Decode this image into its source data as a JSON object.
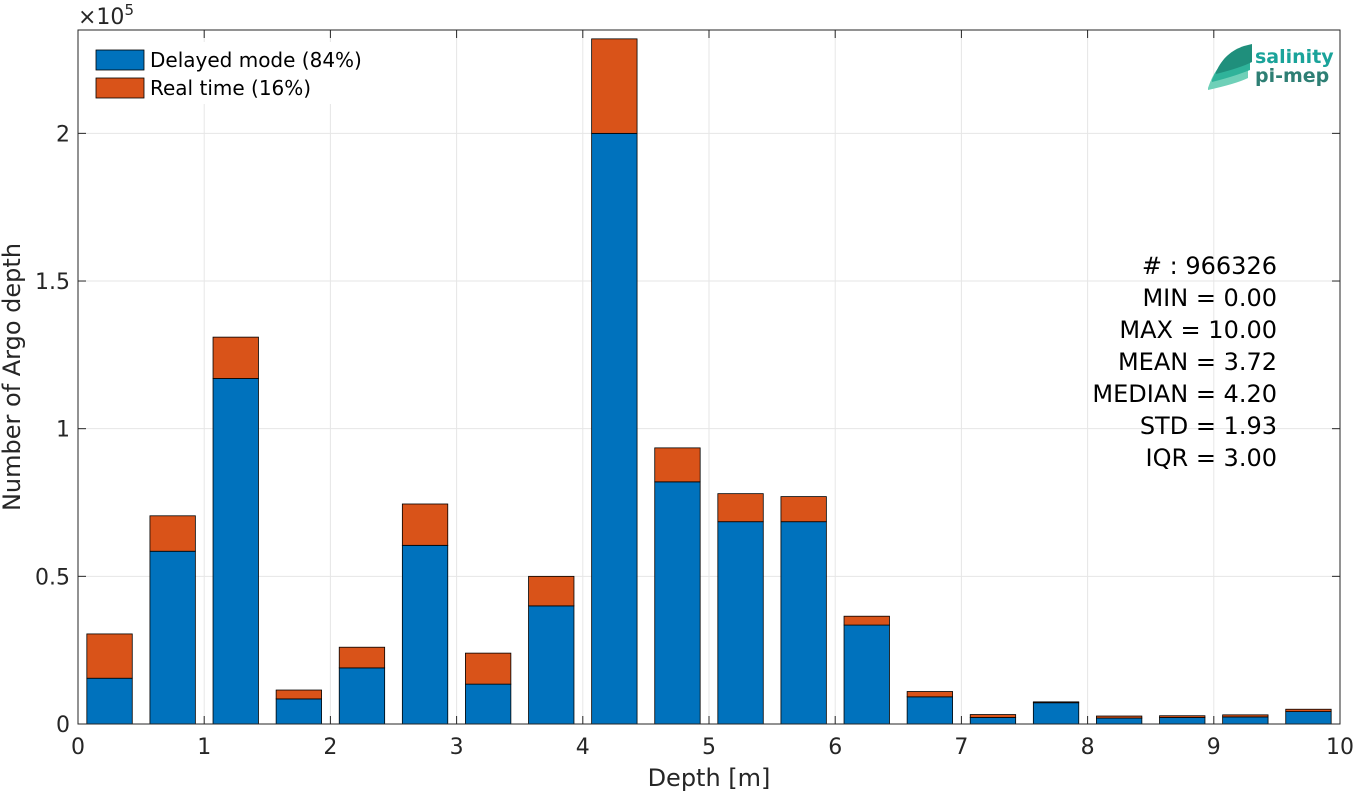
{
  "chart_data": {
    "type": "bar",
    "stacked": true,
    "xlabel": "Depth [m]",
    "ylabel": "Number of Argo depth",
    "y_exponent_label": "×10",
    "y_exponent_power": "5",
    "xlim": [
      0,
      10
    ],
    "ylim": [
      0,
      235000
    ],
    "x_ticks": [
      0,
      1,
      2,
      3,
      4,
      5,
      6,
      7,
      8,
      9,
      10
    ],
    "x_tick_labels": [
      "0",
      "1",
      "2",
      "3",
      "4",
      "5",
      "6",
      "7",
      "8",
      "9",
      "10"
    ],
    "y_ticks": [
      0,
      50000,
      100000,
      150000,
      200000
    ],
    "y_tick_labels": [
      "0",
      "0.5",
      "1",
      "1.5",
      "2"
    ],
    "grid": true,
    "legend_position": "top-left",
    "bin_centers": [
      0.25,
      0.75,
      1.25,
      1.75,
      2.25,
      2.75,
      3.25,
      3.75,
      4.25,
      4.75,
      5.25,
      5.75,
      6.25,
      6.75,
      7.25,
      7.75,
      8.25,
      8.75,
      9.25,
      9.75
    ],
    "series": [
      {
        "name": "Delayed mode (84%)",
        "color": "#0072BD",
        "values": [
          15500,
          58500,
          117000,
          8500,
          19000,
          60500,
          13500,
          40000,
          200000,
          82000,
          68500,
          68500,
          33500,
          9200,
          2200,
          7200,
          2000,
          2200,
          2400,
          4200
        ]
      },
      {
        "name": "Real time (16%)",
        "color": "#D95319",
        "values": [
          15000,
          12000,
          14000,
          3000,
          7000,
          14000,
          10500,
          10000,
          32000,
          11500,
          9500,
          8500,
          3000,
          1800,
          1000,
          300,
          700,
          600,
          700,
          800
        ]
      }
    ]
  },
  "stats": [
    "# : 966326",
    "MIN = 0.00",
    "MAX =  10.00",
    "MEAN = 3.72",
    "MEDIAN = 4.20",
    "STD = 1.93",
    "IQR = 3.00"
  ],
  "logo": {
    "line1": "salinity",
    "line2": "pi-mep",
    "color_main": "#1aa39a",
    "color_dark": "#2e7f74"
  }
}
